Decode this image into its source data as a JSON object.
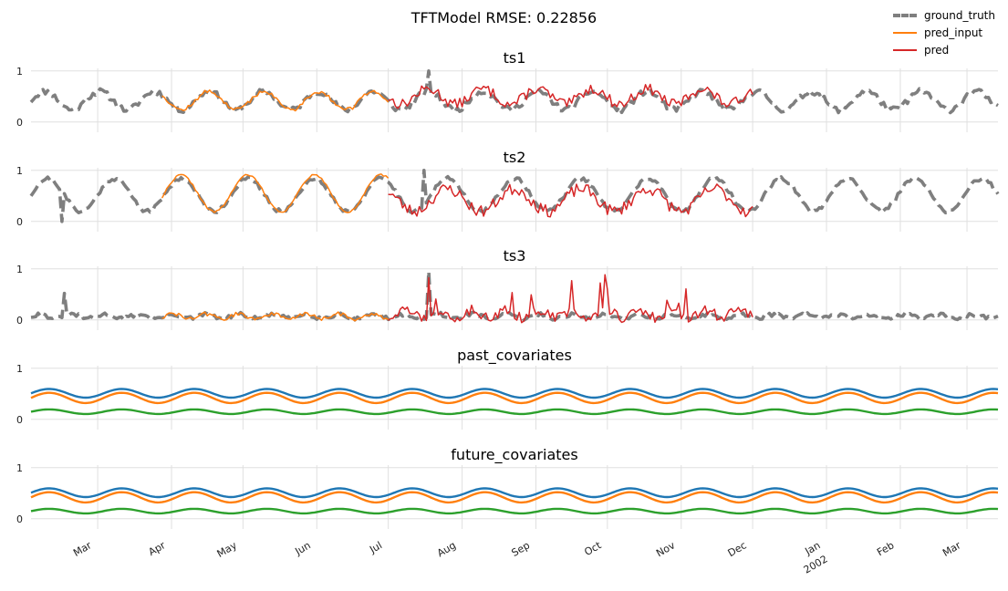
{
  "title": "TFTModel RMSE: 0.22856",
  "legend": [
    {
      "label": "ground_truth",
      "color": "#7f7f7f",
      "style": "dashed"
    },
    {
      "label": "pred_input",
      "color": "#ff7f0e",
      "style": "solid"
    },
    {
      "label": "pred",
      "color": "#d62728",
      "style": "solid"
    }
  ],
  "chart_data": [
    {
      "type": "line",
      "title": "ts1",
      "ylim": [
        -0.2,
        1.05
      ],
      "yticks": [
        0,
        1
      ],
      "x_range": [
        "2001-02-01",
        "2002-03-14"
      ],
      "series": [
        {
          "name": "ground_truth",
          "kind": "noisy_sine",
          "mean": 0.42,
          "amplitude": 0.18,
          "period_days": 23,
          "noise": 0.06,
          "x_start": "2001-02-01",
          "x_end": "2002-03-14",
          "color": "#7f7f7f",
          "dash": true,
          "seed": 11,
          "spikes": [
            {
              "x": "2001-07-18",
              "y": 1.0
            }
          ]
        },
        {
          "name": "pred_input",
          "kind": "noisy_sine",
          "mean": 0.42,
          "amplitude": 0.18,
          "period_days": 23,
          "noise": 0.04,
          "x_start": "2001-03-28",
          "x_end": "2001-07-01",
          "color": "#ff7f0e",
          "dash": false,
          "seed": 12
        },
        {
          "name": "pred",
          "kind": "noisy_sine",
          "mean": 0.5,
          "amplitude": 0.15,
          "period_days": 23,
          "noise": 0.1,
          "x_start": "2001-07-01",
          "x_end": "2001-12-01",
          "color": "#d62728",
          "dash": false,
          "seed": 13
        }
      ]
    },
    {
      "type": "line",
      "title": "ts2",
      "ylim": [
        -0.2,
        1.05
      ],
      "yticks": [
        0,
        1
      ],
      "x_range": [
        "2001-02-01",
        "2002-03-14"
      ],
      "series": [
        {
          "name": "ground_truth",
          "kind": "noisy_sine",
          "mean": 0.52,
          "amplitude": 0.32,
          "period_days": 28,
          "noise": 0.04,
          "x_start": "2001-02-01",
          "x_end": "2002-03-14",
          "color": "#7f7f7f",
          "dash": true,
          "seed": 21,
          "spikes": [
            {
              "x": "2001-02-14",
              "y": 0.0
            },
            {
              "x": "2001-07-16",
              "y": 1.0
            }
          ]
        },
        {
          "name": "pred_input",
          "kind": "noisy_sine",
          "mean": 0.55,
          "amplitude": 0.36,
          "period_days": 28,
          "noise": 0.02,
          "x_start": "2001-03-28",
          "x_end": "2001-07-01",
          "color": "#ff7f0e",
          "dash": false,
          "seed": 22
        },
        {
          "name": "pred",
          "kind": "noisy_sine",
          "mean": 0.42,
          "amplitude": 0.22,
          "period_days": 28,
          "noise": 0.12,
          "x_start": "2001-07-01",
          "x_end": "2001-12-01",
          "color": "#d62728",
          "dash": false,
          "seed": 23
        }
      ]
    },
    {
      "type": "line",
      "title": "ts3",
      "ylim": [
        -0.2,
        1.05
      ],
      "yticks": [
        0,
        1
      ],
      "x_range": [
        "2001-02-01",
        "2002-03-14"
      ],
      "series": [
        {
          "name": "ground_truth",
          "kind": "noisy_sine",
          "mean": 0.07,
          "amplitude": 0.04,
          "period_days": 14,
          "noise": 0.04,
          "x_start": "2001-02-01",
          "x_end": "2002-03-14",
          "color": "#7f7f7f",
          "dash": true,
          "seed": 31,
          "spikes": [
            {
              "x": "2001-02-15",
              "y": 0.52
            },
            {
              "x": "2001-07-18",
              "y": 0.95
            }
          ]
        },
        {
          "name": "pred_input",
          "kind": "noisy_sine",
          "mean": 0.07,
          "amplitude": 0.05,
          "period_days": 14,
          "noise": 0.04,
          "x_start": "2001-03-28",
          "x_end": "2001-07-01",
          "color": "#ff7f0e",
          "dash": false,
          "seed": 32
        },
        {
          "name": "pred",
          "kind": "spiky",
          "mean": 0.12,
          "amplitude": 0.08,
          "period_days": 14,
          "noise": 0.1,
          "spike_prob": 0.08,
          "spike_max": 0.9,
          "x_start": "2001-07-01",
          "x_end": "2001-12-01",
          "color": "#d62728",
          "dash": false,
          "seed": 33
        }
      ]
    },
    {
      "type": "line",
      "title": "past_covariates",
      "ylim": [
        -0.2,
        1.05
      ],
      "yticks": [
        0,
        1
      ],
      "x_range": [
        "2001-02-01",
        "2002-03-14"
      ],
      "series": [
        {
          "kind": "sine",
          "mean": 0.51,
          "amplitude": 0.085,
          "period_days": 30.5,
          "phase_days": 0,
          "x_start": "2001-02-01",
          "x_end": "2002-03-14",
          "color": "#1f77b4"
        },
        {
          "kind": "sine",
          "mean": 0.42,
          "amplitude": 0.1,
          "period_days": 30.5,
          "phase_days": 0,
          "x_start": "2001-02-01",
          "x_end": "2002-03-14",
          "color": "#ff7f0e"
        },
        {
          "kind": "sine",
          "mean": 0.15,
          "amplitude": 0.045,
          "period_days": 30.5,
          "phase_days": 0,
          "x_start": "2001-02-01",
          "x_end": "2002-03-14",
          "color": "#2ca02c"
        }
      ]
    },
    {
      "type": "line",
      "title": "future_covariates",
      "ylim": [
        -0.2,
        1.05
      ],
      "yticks": [
        0,
        1
      ],
      "x_range": [
        "2001-02-01",
        "2002-03-14"
      ],
      "series": [
        {
          "kind": "sine",
          "mean": 0.51,
          "amplitude": 0.085,
          "period_days": 30.5,
          "phase_days": 0,
          "x_start": "2001-02-01",
          "x_end": "2002-03-14",
          "color": "#1f77b4"
        },
        {
          "kind": "sine",
          "mean": 0.42,
          "amplitude": 0.1,
          "period_days": 30.5,
          "phase_days": 0,
          "x_start": "2001-02-01",
          "x_end": "2002-03-14",
          "color": "#ff7f0e"
        },
        {
          "kind": "sine",
          "mean": 0.15,
          "amplitude": 0.045,
          "period_days": 30.5,
          "phase_days": 0,
          "x_start": "2001-02-01",
          "x_end": "2002-03-14",
          "color": "#2ca02c"
        }
      ]
    }
  ],
  "x_axis": {
    "range": [
      "2001-02-01",
      "2002-03-14"
    ],
    "ticks": [
      {
        "date": "2001-03-01",
        "label": "Mar"
      },
      {
        "date": "2001-04-01",
        "label": "Apr"
      },
      {
        "date": "2001-05-01",
        "label": "May"
      },
      {
        "date": "2001-06-01",
        "label": "Jun"
      },
      {
        "date": "2001-07-01",
        "label": "Jul"
      },
      {
        "date": "2001-08-01",
        "label": "Aug"
      },
      {
        "date": "2001-09-01",
        "label": "Sep"
      },
      {
        "date": "2001-10-01",
        "label": "Oct"
      },
      {
        "date": "2001-11-01",
        "label": "Nov"
      },
      {
        "date": "2001-12-01",
        "label": "Dec"
      },
      {
        "date": "2002-01-01",
        "label": "Jan",
        "sublabel": "2002"
      },
      {
        "date": "2002-02-01",
        "label": "Feb"
      },
      {
        "date": "2002-03-01",
        "label": "Mar"
      }
    ]
  }
}
